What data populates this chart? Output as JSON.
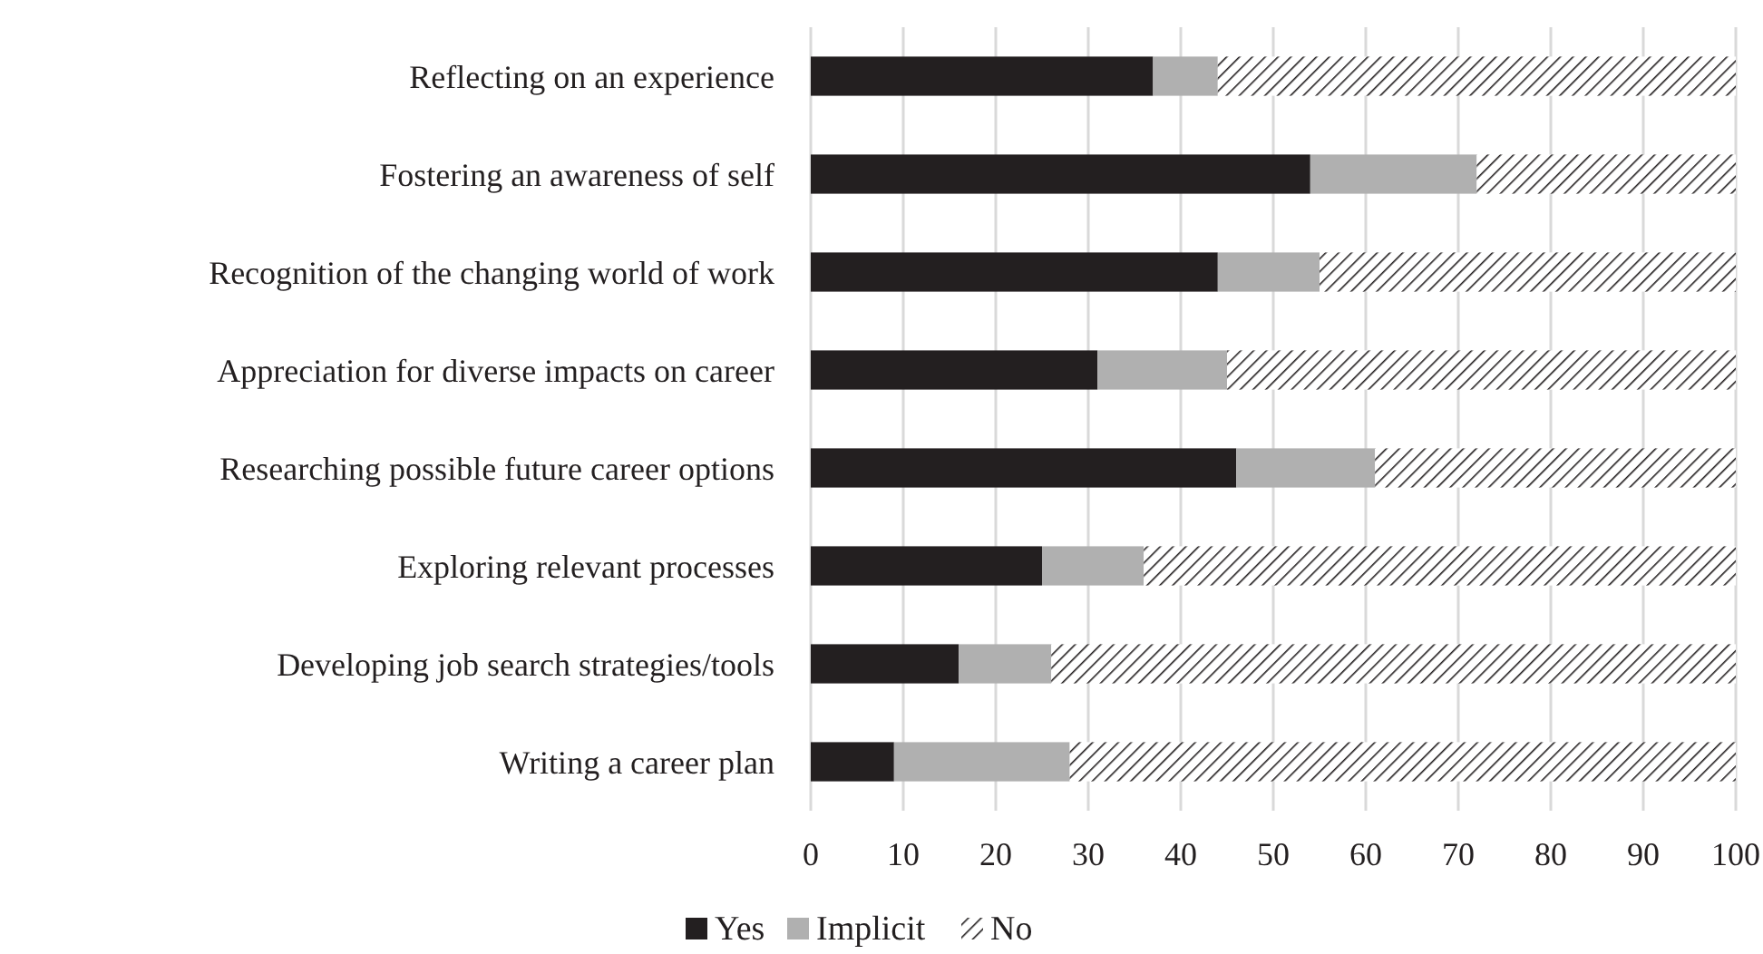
{
  "chart_data": {
    "type": "bar",
    "orientation": "horizontal",
    "stacked": true,
    "categories": [
      "Reflecting on an experience",
      "Fostering an awareness of self",
      "Recognition of the changing world of work",
      "Appreciation for diverse impacts on career",
      "Researching possible future career options",
      "Exploring relevant processes",
      "Developing job search strategies/tools",
      "Writing a career plan"
    ],
    "series": [
      {
        "name": "Yes",
        "color": "#231f20",
        "values": [
          37,
          54,
          44,
          31,
          46,
          25,
          16,
          9
        ]
      },
      {
        "name": "Implicit",
        "color": "#b0b0b0",
        "values": [
          7,
          18,
          11,
          14,
          15,
          11,
          10,
          19
        ]
      },
      {
        "name": "No",
        "color": "#231f20",
        "values": [
          56,
          28,
          45,
          55,
          39,
          64,
          74,
          72
        ]
      }
    ],
    "xlim": [
      0,
      100
    ],
    "xticks": [
      0,
      10,
      20,
      30,
      40,
      50,
      60,
      70,
      80,
      90,
      100
    ],
    "grid": "x",
    "legend": "bottom"
  }
}
